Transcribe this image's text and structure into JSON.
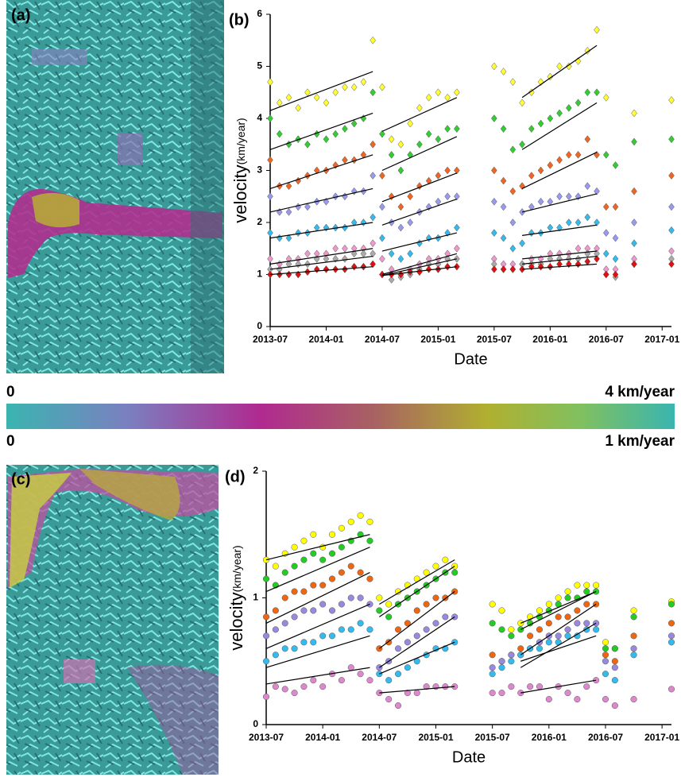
{
  "images": [
    {
      "label": "(a)"
    },
    {
      "label": "(c)"
    }
  ],
  "colorbar": [
    {
      "min_label": "0",
      "max_label": "4 km/year"
    },
    {
      "min_label": "0",
      "max_label": "1 km/year"
    }
  ],
  "chart_data": [
    {
      "type": "scatter",
      "panel_label": "(b)",
      "marker": "diamond",
      "xlabel": "Date",
      "ylabel": "velocity",
      "ylabel_unit": "(km/year)",
      "xlim": [
        "2013-07",
        "2017-02"
      ],
      "xticks": [
        "2013-07",
        "2014-01",
        "2014-07",
        "2015-01",
        "2015-07",
        "2016-01",
        "2016-07",
        "2017-01"
      ],
      "ylim": [
        0,
        6
      ],
      "yticks": [
        0,
        1,
        2,
        3,
        4,
        5,
        6
      ],
      "trend_periods": [
        [
          "2013-07",
          "2014-06"
        ],
        [
          "2014-07",
          "2015-03"
        ],
        [
          "2015-10",
          "2016-06"
        ]
      ],
      "x": [
        "2013-07",
        "2013-08",
        "2013-09",
        "2013-10",
        "2013-11",
        "2013-12",
        "2014-01",
        "2014-02",
        "2014-03",
        "2014-04",
        "2014-05",
        "2014-06",
        "2014-07",
        "2014-08",
        "2014-09",
        "2014-10",
        "2014-11",
        "2014-12",
        "2015-01",
        "2015-02",
        "2015-03",
        "2015-07",
        "2015-08",
        "2015-09",
        "2015-10",
        "2015-11",
        "2015-12",
        "2016-01",
        "2016-02",
        "2016-03",
        "2016-04",
        "2016-05",
        "2016-06",
        "2016-07",
        "2016-08",
        "2016-10",
        "2016-12",
        "2017-02"
      ],
      "series": [
        {
          "color": "#ffff33",
          "values": [
            4.7,
            4.3,
            4.4,
            4.2,
            4.5,
            4.4,
            4.3,
            4.5,
            4.6,
            4.6,
            4.7,
            5.5,
            4.6,
            3.6,
            3.5,
            3.9,
            4.2,
            4.4,
            4.5,
            4.4,
            4.5,
            5.0,
            4.9,
            4.7,
            4.3,
            4.5,
            4.7,
            4.8,
            5.0,
            5.0,
            5.1,
            5.3,
            5.7,
            4.4,
            null,
            4.1,
            null,
            4.35
          ],
          "trend": [
            [
              4.15,
              4.9
            ],
            [
              3.75,
              4.4
            ],
            [
              4.4,
              5.4
            ]
          ]
        },
        {
          "color": "#33cc33",
          "values": [
            4.0,
            3.7,
            3.5,
            3.6,
            3.5,
            3.7,
            3.6,
            3.7,
            3.8,
            3.9,
            4.0,
            4.5,
            3.7,
            3.3,
            3.0,
            3.3,
            3.5,
            3.7,
            3.6,
            3.8,
            3.8,
            4.0,
            3.8,
            3.4,
            3.5,
            3.8,
            3.9,
            4.0,
            4.1,
            4.2,
            4.3,
            4.5,
            4.5,
            3.3,
            3.1,
            3.55,
            null,
            3.6
          ],
          "trend": [
            [
              3.4,
              4.1
            ],
            [
              3.0,
              3.65
            ],
            [
              3.4,
              4.3
            ]
          ]
        },
        {
          "color": "#ee6622",
          "values": [
            3.2,
            2.7,
            2.7,
            2.8,
            2.9,
            3.0,
            3.0,
            3.1,
            3.2,
            3.2,
            3.3,
            3.5,
            2.9,
            2.5,
            2.3,
            2.5,
            2.7,
            2.8,
            2.9,
            3.0,
            3.0,
            3.0,
            2.8,
            2.6,
            2.7,
            2.9,
            3.0,
            3.1,
            3.2,
            3.3,
            3.3,
            3.6,
            3.3,
            2.3,
            2.3,
            2.6,
            null,
            2.9
          ],
          "trend": [
            [
              2.65,
              3.3
            ],
            [
              2.4,
              2.95
            ],
            [
              2.65,
              3.35
            ]
          ]
        },
        {
          "color": "#9999ee",
          "values": [
            2.5,
            2.2,
            2.2,
            2.3,
            2.3,
            2.4,
            2.4,
            2.5,
            2.5,
            2.6,
            2.6,
            2.9,
            2.3,
            2.0,
            1.9,
            2.0,
            2.2,
            2.3,
            2.4,
            2.5,
            2.5,
            2.4,
            2.3,
            2.0,
            2.2,
            2.3,
            2.4,
            2.4,
            2.5,
            2.5,
            2.5,
            2.7,
            2.6,
            1.8,
            1.7,
            2.0,
            null,
            2.3
          ],
          "trend": [
            [
              2.2,
              2.65
            ],
            [
              1.95,
              2.45
            ],
            [
              2.2,
              2.55
            ]
          ]
        },
        {
          "color": "#33bbee",
          "values": [
            1.8,
            1.7,
            1.7,
            1.8,
            1.8,
            1.9,
            1.9,
            1.9,
            1.9,
            2.0,
            2.0,
            2.1,
            1.7,
            1.4,
            1.3,
            1.4,
            1.6,
            1.7,
            1.7,
            1.8,
            1.9,
            1.8,
            1.7,
            1.5,
            1.6,
            1.8,
            1.8,
            1.9,
            1.9,
            2.0,
            2.0,
            2.1,
            2.0,
            1.4,
            1.3,
            1.6,
            null,
            1.85
          ],
          "trend": [
            [
              1.7,
              2.0
            ],
            [
              1.45,
              1.8
            ],
            [
              1.75,
              1.95
            ]
          ]
        },
        {
          "color": "#ee99cc",
          "values": [
            1.3,
            1.2,
            1.3,
            1.3,
            1.4,
            1.4,
            1.4,
            1.5,
            1.5,
            1.5,
            1.5,
            1.6,
            1.3,
            1.1,
            1.0,
            1.1,
            1.2,
            1.3,
            1.3,
            1.4,
            1.5,
            1.3,
            1.2,
            1.2,
            1.2,
            1.3,
            1.3,
            1.4,
            1.4,
            1.4,
            1.5,
            1.5,
            1.5,
            1.1,
            1.1,
            1.3,
            null,
            1.45
          ],
          "trend": [
            [
              1.2,
              1.5
            ],
            [
              1.0,
              1.4
            ],
            [
              1.3,
              1.45
            ]
          ]
        },
        {
          "color": "#aaaaaa",
          "values": [
            1.1,
            1.1,
            1.2,
            1.2,
            1.2,
            1.3,
            1.3,
            1.3,
            1.3,
            1.4,
            1.4,
            1.4,
            1.0,
            0.9,
            0.95,
            1.0,
            1.1,
            1.2,
            1.2,
            1.3,
            1.3,
            1.2,
            1.1,
            1.1,
            1.2,
            1.2,
            1.2,
            1.3,
            1.3,
            1.3,
            1.3,
            1.4,
            1.4,
            1.0,
            0.95,
            1.2,
            null,
            1.3
          ],
          "trend": [
            [
              1.1,
              1.35
            ],
            [
              0.98,
              1.3
            ],
            [
              1.2,
              1.35
            ]
          ]
        },
        {
          "color": "#dd1111",
          "values": [
            1.0,
            1.0,
            1.0,
            1.0,
            1.05,
            1.1,
            1.1,
            1.1,
            1.1,
            1.15,
            1.15,
            1.2,
            1.0,
            1.0,
            1.0,
            1.05,
            1.05,
            1.1,
            1.1,
            1.15,
            1.15,
            1.1,
            1.1,
            1.1,
            1.1,
            1.15,
            1.15,
            1.15,
            1.2,
            1.2,
            1.2,
            1.25,
            1.3,
            1.0,
            1.0,
            1.2,
            null,
            1.2
          ],
          "trend": [
            [
              1.0,
              1.15
            ],
            [
              0.98,
              1.15
            ],
            [
              1.1,
              1.2
            ]
          ]
        }
      ]
    },
    {
      "type": "scatter",
      "panel_label": "(d)",
      "marker": "circle",
      "xlabel": "Date",
      "ylabel": "velocity",
      "ylabel_unit": "(km/year)",
      "xlim": [
        "2013-07",
        "2017-02"
      ],
      "xticks": [
        "2013-07",
        "2014-01",
        "2014-07",
        "2015-01",
        "2015-07",
        "2016-01",
        "2016-07",
        "2017-01"
      ],
      "ylim": [
        0,
        2
      ],
      "yticks": [
        0,
        1,
        2
      ],
      "trend_periods": [
        [
          "2013-07",
          "2014-06"
        ],
        [
          "2014-07",
          "2015-03"
        ],
        [
          "2015-10",
          "2016-06"
        ]
      ],
      "x": [
        "2013-07",
        "2013-08",
        "2013-09",
        "2013-10",
        "2013-11",
        "2013-12",
        "2014-01",
        "2014-02",
        "2014-03",
        "2014-04",
        "2014-05",
        "2014-06",
        "2014-07",
        "2014-08",
        "2014-09",
        "2014-10",
        "2014-11",
        "2014-12",
        "2015-01",
        "2015-02",
        "2015-03",
        "2015-07",
        "2015-08",
        "2015-09",
        "2015-10",
        "2015-11",
        "2015-12",
        "2016-01",
        "2016-02",
        "2016-03",
        "2016-04",
        "2016-05",
        "2016-06",
        "2016-07",
        "2016-08",
        "2016-10",
        "2016-12",
        "2017-02"
      ],
      "series": [
        {
          "color": "#ffff00",
          "values": [
            1.3,
            1.25,
            1.35,
            1.4,
            1.45,
            1.5,
            1.4,
            1.5,
            1.55,
            1.6,
            1.65,
            1.6,
            1.0,
            0.95,
            1.05,
            1.1,
            1.15,
            1.2,
            1.25,
            1.3,
            1.25,
            0.95,
            0.9,
            0.75,
            0.8,
            0.85,
            0.9,
            0.95,
            1.0,
            1.05,
            1.1,
            1.1,
            1.1,
            0.65,
            0.6,
            0.9,
            null,
            0.97
          ],
          "trend": [
            [
              1.3,
              1.5
            ],
            [
              0.95,
              1.3
            ],
            [
              0.8,
              1.05
            ]
          ]
        },
        {
          "color": "#22cc22",
          "values": [
            1.15,
            1.1,
            1.2,
            1.25,
            1.3,
            1.35,
            1.3,
            1.35,
            1.4,
            1.45,
            1.5,
            1.45,
            0.9,
            0.85,
            0.95,
            1.0,
            1.05,
            1.1,
            1.15,
            1.2,
            1.2,
            0.8,
            0.75,
            0.7,
            0.75,
            0.8,
            0.85,
            0.9,
            0.95,
            1.0,
            1.0,
            1.05,
            1.05,
            0.6,
            0.6,
            0.85,
            null,
            0.95
          ],
          "trend": [
            [
              1.05,
              1.4
            ],
            [
              0.85,
              1.25
            ],
            [
              0.75,
              1.05
            ]
          ]
        },
        {
          "color": "#ee6611",
          "values": [
            0.85,
            0.9,
            1.0,
            1.05,
            1.05,
            1.1,
            1.1,
            1.15,
            1.2,
            1.25,
            1.2,
            1.15,
            0.6,
            0.65,
            0.75,
            0.8,
            0.9,
            0.95,
            1.0,
            1.0,
            1.05,
            0.55,
            0.5,
            0.55,
            0.6,
            0.7,
            0.75,
            0.8,
            0.85,
            0.85,
            0.9,
            0.95,
            0.95,
            0.55,
            0.5,
            0.7,
            null,
            0.8
          ],
          "trend": [
            [
              0.8,
              1.2
            ],
            [
              0.6,
              1.05
            ],
            [
              0.55,
              0.95
            ]
          ]
        },
        {
          "color": "#9988dd",
          "values": [
            0.7,
            0.75,
            0.8,
            0.85,
            0.9,
            0.9,
            0.95,
            0.9,
            0.95,
            1.0,
            1.0,
            0.95,
            0.45,
            0.5,
            0.6,
            0.65,
            0.7,
            0.75,
            0.8,
            0.85,
            0.85,
            0.45,
            0.5,
            0.55,
            0.55,
            0.6,
            0.65,
            0.7,
            0.7,
            0.75,
            0.8,
            0.8,
            0.8,
            0.5,
            0.45,
            0.6,
            null,
            0.7
          ],
          "trend": [
            [
              0.6,
              0.95
            ],
            [
              0.45,
              0.85
            ],
            [
              0.45,
              0.8
            ]
          ]
        },
        {
          "color": "#33bbee",
          "values": [
            0.5,
            0.55,
            0.6,
            0.6,
            0.65,
            0.65,
            0.7,
            0.7,
            0.75,
            0.75,
            0.8,
            0.75,
            0.4,
            0.35,
            0.4,
            0.45,
            0.5,
            0.55,
            0.6,
            0.6,
            0.65,
            0.4,
            0.45,
            0.5,
            0.55,
            0.6,
            0.6,
            0.65,
            0.65,
            0.7,
            0.7,
            0.75,
            0.75,
            0.4,
            0.35,
            0.55,
            null,
            0.65
          ],
          "trend": [
            [
              0.45,
              0.7
            ],
            [
              0.4,
              0.65
            ],
            [
              0.5,
              0.7
            ]
          ]
        },
        {
          "color": "#dd88cc",
          "values": [
            0.22,
            0.3,
            0.28,
            0.25,
            0.3,
            0.35,
            0.3,
            0.4,
            0.35,
            0.45,
            0.4,
            0.35,
            0.25,
            0.2,
            0.15,
            0.25,
            0.25,
            0.3,
            0.3,
            0.3,
            0.3,
            0.25,
            0.25,
            0.3,
            0.25,
            0.3,
            0.3,
            0.2,
            0.3,
            0.25,
            0.2,
            0.3,
            0.35,
            0.2,
            0.15,
            0.2,
            null,
            0.28
          ],
          "trend": [
            [
              0.32,
              0.45
            ],
            [
              0.25,
              0.3
            ],
            [
              0.25,
              0.35
            ]
          ]
        }
      ]
    }
  ]
}
